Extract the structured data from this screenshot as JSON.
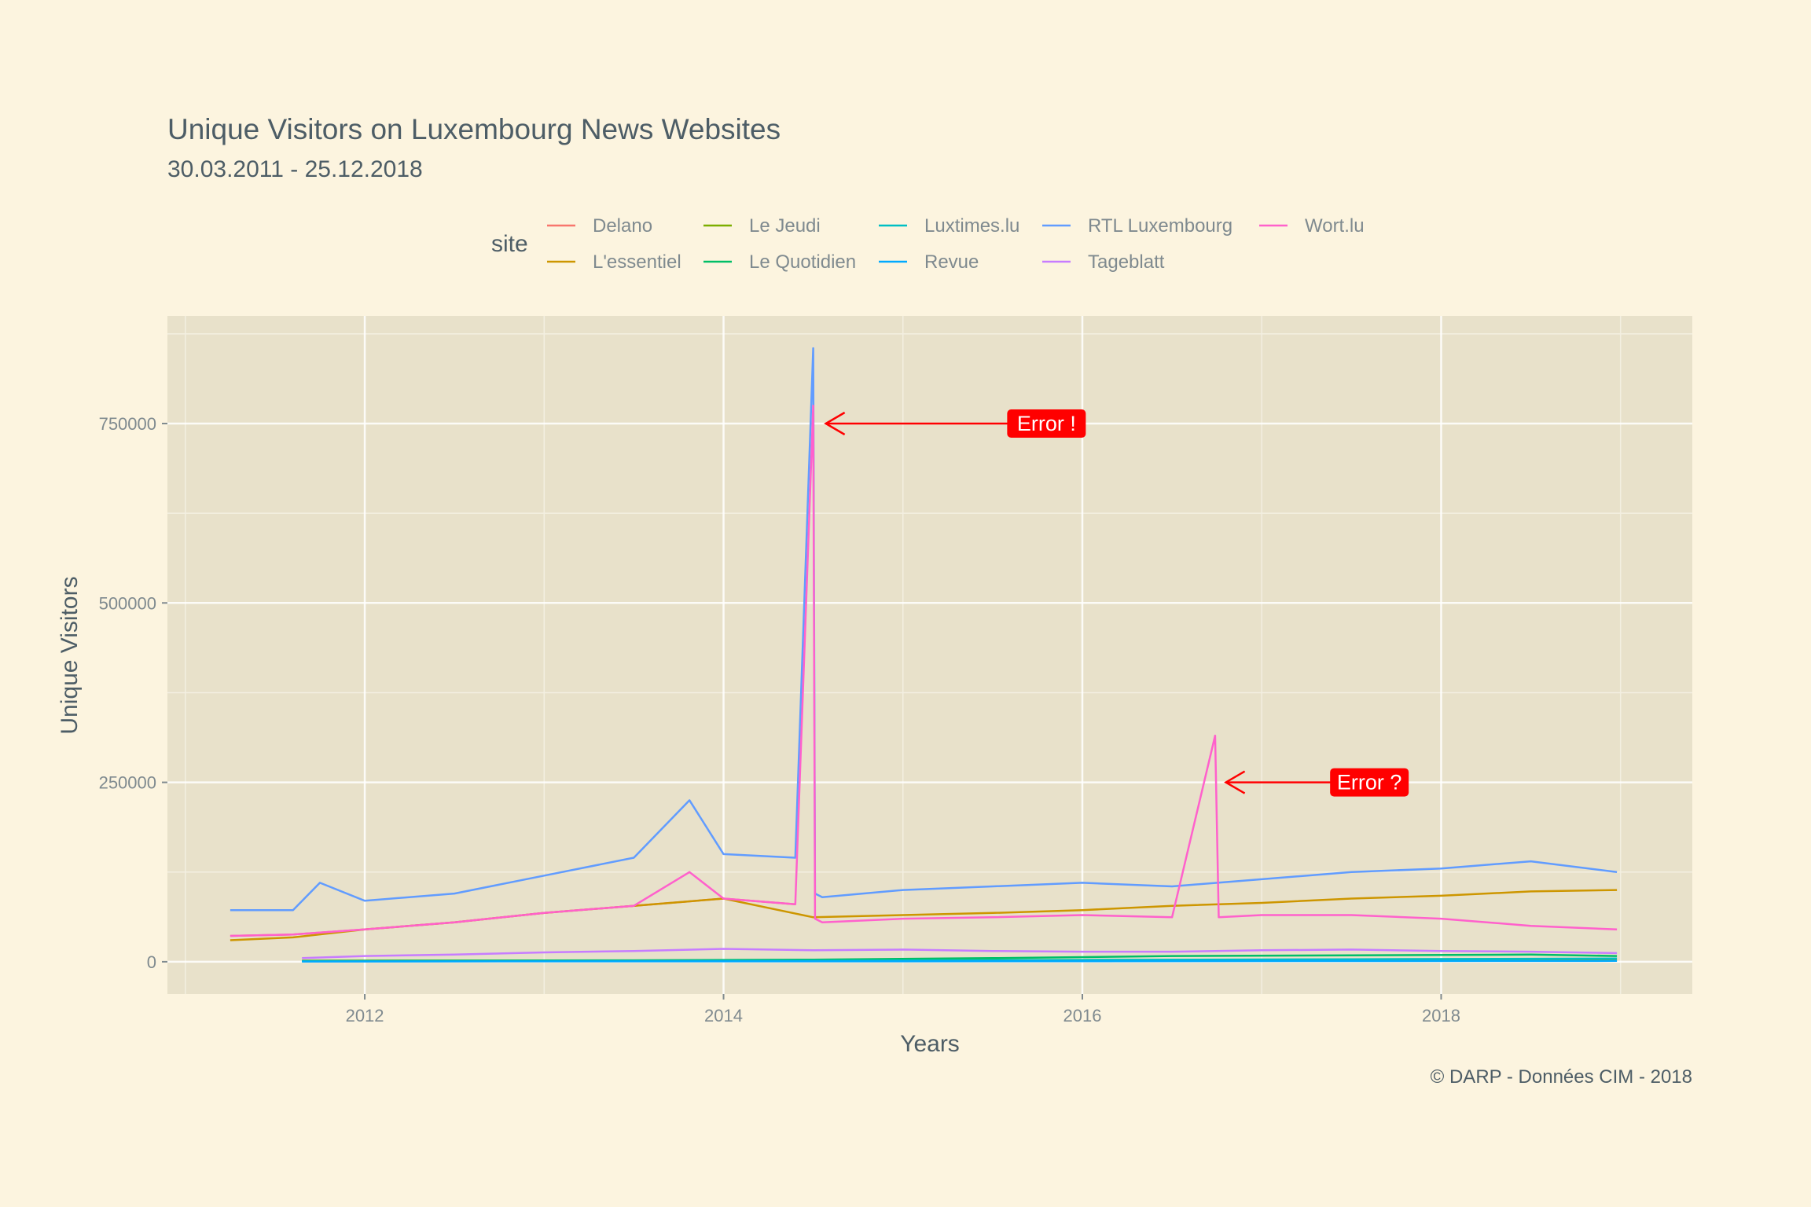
{
  "chart_data": {
    "type": "line",
    "title": "Unique Visitors on Luxembourg News Websites",
    "subtitle": "30.03.2011 - 25.12.2018",
    "xlabel": "Years",
    "ylabel": "Unique Visitors",
    "caption": "© DARP - Données CIM - 2018",
    "legend_title": "site",
    "legend_position": "top",
    "grid": true,
    "xlim": [
      2010.9,
      2019.4
    ],
    "ylim": [
      -45000,
      900000
    ],
    "xticks": [
      2012,
      2014,
      2016,
      2018
    ],
    "xtick_labels": [
      "2012",
      "2014",
      "2016",
      "2018"
    ],
    "yticks": [
      0,
      250000,
      500000,
      750000
    ],
    "ytick_labels": [
      "0",
      "250000",
      "500000",
      "750000"
    ],
    "series": [
      {
        "name": "Delano",
        "color": "#f8766d",
        "x": [
          2011.25,
          2011.6,
          2012.0,
          2012.5,
          2013.0,
          2013.5,
          2014.0,
          2014.4
        ],
        "y": [
          36000,
          38000,
          45000,
          55000,
          68000,
          78000,
          88000,
          80000
        ]
      },
      {
        "name": "L'essentiel",
        "color": "#cd9600",
        "x": [
          2011.25,
          2011.6,
          2012.0,
          2012.5,
          2013.0,
          2013.5,
          2014.0,
          2014.5,
          2015.0,
          2015.5,
          2016.0,
          2016.5,
          2017.0,
          2017.5,
          2018.0,
          2018.5,
          2018.98
        ],
        "y": [
          30000,
          34000,
          45000,
          55000,
          68000,
          78000,
          88000,
          62000,
          65000,
          68000,
          72000,
          78000,
          82000,
          88000,
          92000,
          98000,
          100000
        ]
      },
      {
        "name": "Le Jeudi",
        "color": "#7cae00",
        "x": [
          2011.65,
          2013.0,
          2014.5,
          2016.0,
          2017.5,
          2018.98
        ],
        "y": [
          1500,
          1800,
          2000,
          2500,
          2200,
          2500
        ]
      },
      {
        "name": "Le Quotidien",
        "color": "#00be67",
        "x": [
          2011.65,
          2012.5,
          2013.5,
          2014.5,
          2015.5,
          2016.5,
          2017.5,
          2018.5,
          2018.98
        ],
        "y": [
          1000,
          1500,
          2000,
          3000,
          5000,
          8000,
          9000,
          10000,
          8000
        ]
      },
      {
        "name": "Luxtimes.lu",
        "color": "#00bfc4",
        "x": [
          2011.65,
          2013.0,
          2014.5,
          2016.0,
          2017.5,
          2018.98
        ],
        "y": [
          500,
          800,
          1500,
          2500,
          3500,
          4500
        ]
      },
      {
        "name": "Revue",
        "color": "#00a9ff",
        "x": [
          2011.65,
          2013.0,
          2014.5,
          2016.0,
          2017.5,
          2018.98
        ],
        "y": [
          300,
          500,
          600,
          800,
          1000,
          1200
        ]
      },
      {
        "name": "RTL Luxembourg",
        "color": "#619cff",
        "x": [
          2011.25,
          2011.6,
          2011.75,
          2012.0,
          2012.5,
          2013.0,
          2013.5,
          2013.81,
          2014.0,
          2014.4,
          2014.5,
          2014.51,
          2014.55,
          2015.0,
          2015.5,
          2016.0,
          2016.5,
          2017.0,
          2017.5,
          2018.0,
          2018.5,
          2018.98
        ],
        "y": [
          72000,
          72000,
          110000,
          85000,
          95000,
          120000,
          145000,
          225000,
          150000,
          145000,
          855000,
          95000,
          90000,
          100000,
          105000,
          110000,
          105000,
          115000,
          125000,
          130000,
          140000,
          125000
        ]
      },
      {
        "name": "Tageblatt",
        "color": "#c77cff",
        "x": [
          2011.65,
          2012.0,
          2012.5,
          2013.0,
          2013.5,
          2014.0,
          2014.5,
          2015.0,
          2015.5,
          2016.0,
          2016.5,
          2017.0,
          2017.5,
          2018.0,
          2018.5,
          2018.98
        ],
        "y": [
          5000,
          8000,
          10000,
          13000,
          15000,
          18000,
          16000,
          17000,
          15000,
          14000,
          14000,
          16000,
          17000,
          15000,
          14000,
          12000
        ]
      },
      {
        "name": "Wort.lu",
        "color": "#ff61cc",
        "x": [
          2011.25,
          2011.6,
          2012.0,
          2012.5,
          2013.0,
          2013.5,
          2013.81,
          2014.0,
          2014.4,
          2014.5,
          2014.51,
          2014.55,
          2015.0,
          2015.5,
          2016.0,
          2016.5,
          2016.74,
          2016.76,
          2017.0,
          2017.5,
          2018.0,
          2018.5,
          2018.98
        ],
        "y": [
          36000,
          38000,
          45000,
          55000,
          68000,
          78000,
          125000,
          88000,
          80000,
          775000,
          60000,
          55000,
          60000,
          62000,
          65000,
          62000,
          315000,
          62000,
          65000,
          65000,
          60000,
          50000,
          45000
        ]
      }
    ],
    "annotations": [
      {
        "text": "Error !",
        "x": 2015.8,
        "y": 750000,
        "arrow_to_x": 2014.57,
        "arrow_to_y": 750000
      },
      {
        "text": "Error ?",
        "x": 2017.6,
        "y": 250000,
        "arrow_to_x": 2016.8,
        "arrow_to_y": 250000
      }
    ]
  }
}
